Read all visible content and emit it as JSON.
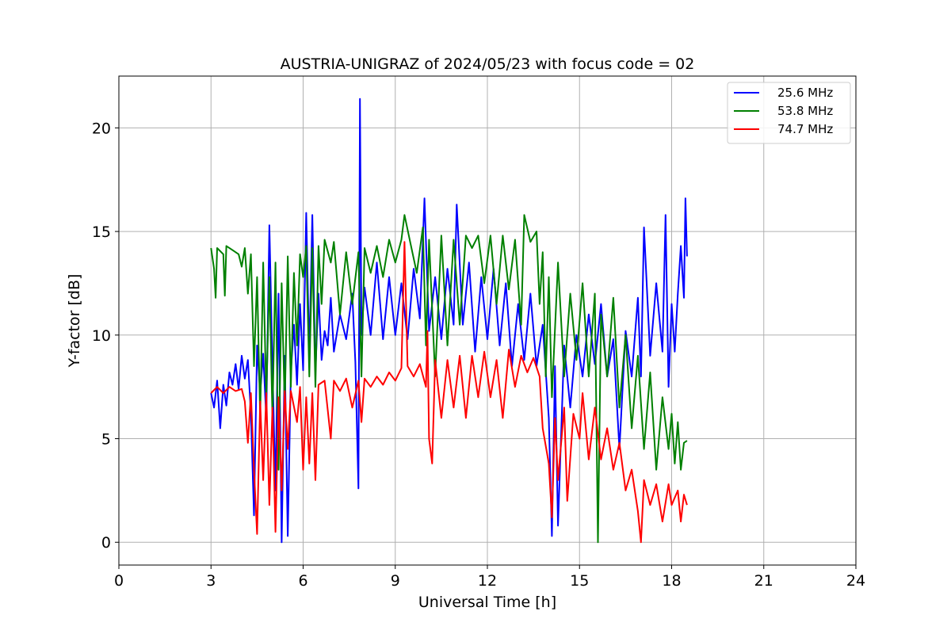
{
  "chart_data": {
    "type": "line",
    "title": "AUSTRIA-UNIGRAZ of 2024/05/23 with focus code = 02",
    "xlabel": "Universal Time [h]",
    "ylabel": "Y-factor [dB]",
    "xlim": [
      0,
      24
    ],
    "ylim": [
      -1.1,
      22.5
    ],
    "xticks": [
      0,
      3,
      6,
      9,
      12,
      15,
      18,
      21,
      24
    ],
    "yticks": [
      0,
      5,
      10,
      15,
      20
    ],
    "grid": true,
    "legend_position": "top-right",
    "series": [
      {
        "name": "25.6 MHz",
        "color": "#0000ff",
        "points": [
          [
            3.0,
            7.2
          ],
          [
            3.1,
            6.5
          ],
          [
            3.2,
            7.8
          ],
          [
            3.3,
            5.5
          ],
          [
            3.4,
            7.6
          ],
          [
            3.5,
            6.6
          ],
          [
            3.6,
            8.2
          ],
          [
            3.7,
            7.6
          ],
          [
            3.8,
            8.6
          ],
          [
            3.9,
            7.4
          ],
          [
            4.0,
            9.0
          ],
          [
            4.1,
            7.9
          ],
          [
            4.2,
            8.8
          ],
          [
            4.3,
            6.2
          ],
          [
            4.4,
            1.3
          ],
          [
            4.5,
            9.5
          ],
          [
            4.6,
            7.2
          ],
          [
            4.7,
            9.1
          ],
          [
            4.8,
            6.0
          ],
          [
            4.9,
            15.3
          ],
          [
            5.0,
            8.5
          ],
          [
            5.1,
            2.5
          ],
          [
            5.2,
            12.0
          ],
          [
            5.3,
            0.0
          ],
          [
            5.4,
            9.0
          ],
          [
            5.5,
            0.3
          ],
          [
            5.6,
            8.2
          ],
          [
            5.7,
            10.5
          ],
          [
            5.8,
            7.6
          ],
          [
            5.9,
            11.5
          ],
          [
            6.0,
            8.3
          ],
          [
            6.1,
            15.9
          ],
          [
            6.2,
            9.0
          ],
          [
            6.3,
            15.8
          ],
          [
            6.4,
            8.2
          ],
          [
            6.5,
            12.0
          ],
          [
            6.6,
            8.8
          ],
          [
            6.7,
            10.2
          ],
          [
            6.8,
            9.5
          ],
          [
            6.9,
            11.8
          ],
          [
            7.0,
            9.2
          ],
          [
            7.2,
            11.0
          ],
          [
            7.4,
            9.8
          ],
          [
            7.6,
            12.0
          ],
          [
            7.7,
            8.7
          ],
          [
            7.8,
            2.6
          ],
          [
            7.85,
            21.4
          ],
          [
            7.9,
            10.0
          ],
          [
            8.0,
            12.3
          ],
          [
            8.2,
            10.0
          ],
          [
            8.4,
            13.5
          ],
          [
            8.6,
            9.8
          ],
          [
            8.8,
            12.8
          ],
          [
            9.0,
            10.0
          ],
          [
            9.2,
            12.5
          ],
          [
            9.4,
            9.8
          ],
          [
            9.6,
            13.2
          ],
          [
            9.8,
            10.8
          ],
          [
            9.95,
            16.6
          ],
          [
            10.1,
            10.2
          ],
          [
            10.3,
            12.8
          ],
          [
            10.5,
            9.8
          ],
          [
            10.7,
            13.2
          ],
          [
            10.9,
            10.5
          ],
          [
            11.0,
            16.3
          ],
          [
            11.2,
            10.5
          ],
          [
            11.4,
            13.5
          ],
          [
            11.6,
            9.2
          ],
          [
            11.8,
            12.8
          ],
          [
            12.0,
            9.8
          ],
          [
            12.2,
            13.2
          ],
          [
            12.4,
            9.5
          ],
          [
            12.6,
            12.5
          ],
          [
            12.8,
            8.5
          ],
          [
            13.0,
            11.5
          ],
          [
            13.2,
            8.8
          ],
          [
            13.4,
            12.0
          ],
          [
            13.6,
            8.5
          ],
          [
            13.8,
            10.5
          ],
          [
            14.0,
            6.0
          ],
          [
            14.1,
            0.3
          ],
          [
            14.2,
            8.5
          ],
          [
            14.3,
            0.8
          ],
          [
            14.5,
            9.5
          ],
          [
            14.7,
            6.5
          ],
          [
            14.9,
            10.0
          ],
          [
            15.1,
            8.0
          ],
          [
            15.3,
            11.0
          ],
          [
            15.5,
            8.6
          ],
          [
            15.7,
            11.5
          ],
          [
            15.9,
            8.0
          ],
          [
            16.1,
            9.8
          ],
          [
            16.3,
            4.5
          ],
          [
            16.5,
            10.2
          ],
          [
            16.7,
            8.0
          ],
          [
            16.9,
            11.8
          ],
          [
            17.0,
            8.0
          ],
          [
            17.1,
            15.2
          ],
          [
            17.3,
            9.0
          ],
          [
            17.5,
            12.5
          ],
          [
            17.7,
            9.2
          ],
          [
            17.8,
            15.8
          ],
          [
            17.9,
            7.5
          ],
          [
            18.0,
            11.5
          ],
          [
            18.1,
            9.2
          ],
          [
            18.2,
            12.0
          ],
          [
            18.3,
            14.3
          ],
          [
            18.4,
            11.8
          ],
          [
            18.45,
            16.6
          ],
          [
            18.5,
            13.8
          ]
        ]
      },
      {
        "name": "53.8 MHz",
        "color": "#008000",
        "points": [
          [
            3.0,
            14.2
          ],
          [
            3.1,
            13.2
          ],
          [
            3.15,
            11.8
          ],
          [
            3.2,
            14.2
          ],
          [
            3.4,
            13.9
          ],
          [
            3.45,
            11.9
          ],
          [
            3.5,
            14.3
          ],
          [
            3.7,
            14.1
          ],
          [
            3.9,
            13.9
          ],
          [
            4.0,
            13.3
          ],
          [
            4.1,
            14.2
          ],
          [
            4.2,
            12.0
          ],
          [
            4.3,
            13.9
          ],
          [
            4.4,
            8.5
          ],
          [
            4.5,
            12.8
          ],
          [
            4.6,
            6.0
          ],
          [
            4.7,
            13.5
          ],
          [
            4.8,
            7.0
          ],
          [
            4.9,
            12.8
          ],
          [
            5.0,
            6.0
          ],
          [
            5.1,
            13.5
          ],
          [
            5.2,
            3.5
          ],
          [
            5.3,
            12.5
          ],
          [
            5.4,
            6.5
          ],
          [
            5.5,
            13.8
          ],
          [
            5.6,
            7.5
          ],
          [
            5.7,
            13.0
          ],
          [
            5.8,
            9.5
          ],
          [
            5.9,
            13.9
          ],
          [
            6.0,
            12.8
          ],
          [
            6.1,
            14.3
          ],
          [
            6.2,
            8.0
          ],
          [
            6.3,
            14.2
          ],
          [
            6.4,
            7.5
          ],
          [
            6.5,
            14.3
          ],
          [
            6.6,
            11.5
          ],
          [
            6.7,
            14.6
          ],
          [
            6.9,
            13.5
          ],
          [
            7.0,
            14.5
          ],
          [
            7.2,
            11.0
          ],
          [
            7.4,
            14.0
          ],
          [
            7.6,
            11.5
          ],
          [
            7.8,
            14.0
          ],
          [
            7.9,
            8.0
          ],
          [
            8.0,
            14.2
          ],
          [
            8.2,
            13.0
          ],
          [
            8.4,
            14.3
          ],
          [
            8.6,
            12.8
          ],
          [
            8.8,
            14.6
          ],
          [
            9.0,
            13.5
          ],
          [
            9.2,
            14.6
          ],
          [
            9.3,
            15.8
          ],
          [
            9.5,
            14.4
          ],
          [
            9.7,
            13.0
          ],
          [
            9.9,
            15.2
          ],
          [
            10.0,
            9.5
          ],
          [
            10.1,
            14.6
          ],
          [
            10.3,
            8.0
          ],
          [
            10.5,
            14.8
          ],
          [
            10.7,
            9.5
          ],
          [
            10.9,
            14.6
          ],
          [
            11.1,
            10.5
          ],
          [
            11.3,
            14.8
          ],
          [
            11.5,
            14.2
          ],
          [
            11.7,
            14.8
          ],
          [
            11.9,
            12.5
          ],
          [
            12.1,
            14.8
          ],
          [
            12.3,
            11.5
          ],
          [
            12.5,
            14.8
          ],
          [
            12.7,
            12.2
          ],
          [
            12.9,
            14.6
          ],
          [
            13.1,
            10.5
          ],
          [
            13.2,
            15.8
          ],
          [
            13.4,
            14.5
          ],
          [
            13.6,
            15.0
          ],
          [
            13.7,
            11.5
          ],
          [
            13.8,
            14.0
          ],
          [
            13.9,
            8.0
          ],
          [
            14.0,
            12.8
          ],
          [
            14.1,
            7.0
          ],
          [
            14.3,
            13.5
          ],
          [
            14.5,
            8.0
          ],
          [
            14.7,
            12.0
          ],
          [
            14.9,
            8.8
          ],
          [
            15.1,
            12.5
          ],
          [
            15.3,
            8.0
          ],
          [
            15.5,
            12.0
          ],
          [
            15.6,
            0.0
          ],
          [
            15.7,
            11.0
          ],
          [
            15.9,
            8.0
          ],
          [
            16.1,
            11.8
          ],
          [
            16.3,
            6.5
          ],
          [
            16.5,
            10.0
          ],
          [
            16.7,
            5.5
          ],
          [
            16.9,
            9.0
          ],
          [
            17.1,
            4.5
          ],
          [
            17.3,
            8.2
          ],
          [
            17.5,
            3.5
          ],
          [
            17.7,
            7.0
          ],
          [
            17.9,
            4.5
          ],
          [
            18.0,
            6.2
          ],
          [
            18.1,
            3.8
          ],
          [
            18.2,
            5.8
          ],
          [
            18.3,
            3.5
          ],
          [
            18.4,
            4.8
          ],
          [
            18.5,
            4.9
          ]
        ]
      },
      {
        "name": "74.7 MHz",
        "color": "#ff0000",
        "points": [
          [
            3.0,
            7.2
          ],
          [
            3.2,
            7.5
          ],
          [
            3.4,
            7.2
          ],
          [
            3.6,
            7.5
          ],
          [
            3.8,
            7.3
          ],
          [
            4.0,
            7.4
          ],
          [
            4.1,
            6.8
          ],
          [
            4.2,
            4.8
          ],
          [
            4.3,
            7.2
          ],
          [
            4.4,
            3.5
          ],
          [
            4.5,
            0.4
          ],
          [
            4.6,
            6.8
          ],
          [
            4.7,
            3.0
          ],
          [
            4.8,
            7.2
          ],
          [
            4.9,
            1.8
          ],
          [
            5.0,
            6.5
          ],
          [
            5.1,
            0.5
          ],
          [
            5.2,
            7.0
          ],
          [
            5.3,
            2.5
          ],
          [
            5.4,
            7.3
          ],
          [
            5.5,
            4.5
          ],
          [
            5.6,
            7.3
          ],
          [
            5.8,
            5.8
          ],
          [
            5.9,
            7.5
          ],
          [
            6.0,
            3.5
          ],
          [
            6.1,
            7.0
          ],
          [
            6.2,
            3.8
          ],
          [
            6.3,
            7.2
          ],
          [
            6.4,
            3.0
          ],
          [
            6.5,
            7.6
          ],
          [
            6.7,
            7.8
          ],
          [
            6.9,
            5.0
          ],
          [
            7.0,
            7.8
          ],
          [
            7.2,
            7.3
          ],
          [
            7.4,
            7.9
          ],
          [
            7.6,
            6.5
          ],
          [
            7.8,
            7.8
          ],
          [
            7.9,
            5.8
          ],
          [
            8.0,
            7.9
          ],
          [
            8.2,
            7.5
          ],
          [
            8.4,
            8.0
          ],
          [
            8.6,
            7.6
          ],
          [
            8.8,
            8.2
          ],
          [
            9.0,
            7.8
          ],
          [
            9.2,
            8.4
          ],
          [
            9.3,
            14.5
          ],
          [
            9.4,
            8.5
          ],
          [
            9.6,
            8.0
          ],
          [
            9.8,
            8.6
          ],
          [
            10.0,
            7.5
          ],
          [
            10.05,
            10.2
          ],
          [
            10.1,
            5.0
          ],
          [
            10.2,
            3.8
          ],
          [
            10.3,
            8.8
          ],
          [
            10.5,
            6.0
          ],
          [
            10.7,
            8.8
          ],
          [
            10.9,
            6.5
          ],
          [
            11.1,
            9.0
          ],
          [
            11.3,
            6.0
          ],
          [
            11.5,
            9.0
          ],
          [
            11.7,
            7.0
          ],
          [
            11.9,
            9.2
          ],
          [
            12.1,
            7.0
          ],
          [
            12.3,
            8.8
          ],
          [
            12.5,
            6.0
          ],
          [
            12.7,
            9.3
          ],
          [
            12.9,
            7.5
          ],
          [
            13.1,
            9.0
          ],
          [
            13.3,
            8.2
          ],
          [
            13.5,
            8.9
          ],
          [
            13.7,
            8.0
          ],
          [
            13.8,
            5.5
          ],
          [
            14.0,
            3.8
          ],
          [
            14.1,
            1.2
          ],
          [
            14.2,
            6.0
          ],
          [
            14.3,
            3.0
          ],
          [
            14.5,
            6.5
          ],
          [
            14.6,
            2.0
          ],
          [
            14.8,
            6.2
          ],
          [
            15.0,
            5.0
          ],
          [
            15.1,
            7.2
          ],
          [
            15.3,
            4.0
          ],
          [
            15.5,
            6.5
          ],
          [
            15.7,
            4.0
          ],
          [
            15.9,
            5.5
          ],
          [
            16.1,
            3.5
          ],
          [
            16.3,
            4.8
          ],
          [
            16.5,
            2.5
          ],
          [
            16.7,
            3.5
          ],
          [
            16.9,
            1.5
          ],
          [
            17.0,
            0.0
          ],
          [
            17.1,
            3.0
          ],
          [
            17.3,
            1.8
          ],
          [
            17.5,
            2.8
          ],
          [
            17.7,
            1.0
          ],
          [
            17.9,
            2.8
          ],
          [
            18.0,
            1.8
          ],
          [
            18.2,
            2.5
          ],
          [
            18.3,
            1.0
          ],
          [
            18.4,
            2.3
          ],
          [
            18.5,
            1.8
          ]
        ]
      }
    ]
  }
}
